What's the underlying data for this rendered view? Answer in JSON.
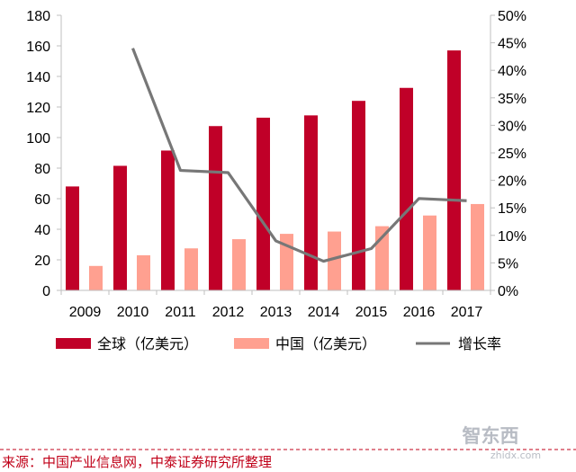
{
  "chart_data": {
    "type": "bar",
    "title": "",
    "categories": [
      "2009",
      "2010",
      "2011",
      "2012",
      "2013",
      "2014",
      "2015",
      "2016",
      "2017"
    ],
    "series": [
      {
        "name": "全球（亿美元）",
        "type": "bar",
        "axis": "left",
        "color": "#c00028",
        "values": [
          68,
          81.5,
          91.5,
          107.5,
          113,
          114.5,
          124,
          132.5,
          157
        ]
      },
      {
        "name": "中国（亿美元）",
        "type": "bar",
        "axis": "left",
        "color": "#ffa090",
        "values": [
          16,
          23,
          27.5,
          33.5,
          37,
          38.5,
          42,
          49,
          56.5
        ]
      },
      {
        "name": "增长率",
        "type": "line",
        "axis": "right",
        "color": "#777777",
        "values": [
          null,
          44,
          21.8,
          21.4,
          9,
          5.3,
          7.6,
          16.7,
          16.3
        ]
      }
    ],
    "y_left": {
      "ylim": [
        0,
        180
      ],
      "ticks": [
        0,
        20,
        40,
        60,
        80,
        100,
        120,
        140,
        160,
        180
      ],
      "tick_labels": [
        "0",
        "20",
        "40",
        "60",
        "80",
        "100",
        "120",
        "140",
        "160",
        "180"
      ]
    },
    "y_right": {
      "ylim": [
        0,
        50
      ],
      "ticks": [
        0,
        5,
        10,
        15,
        20,
        25,
        30,
        35,
        40,
        45,
        50
      ],
      "tick_labels": [
        "0%",
        "5%",
        "10%",
        "15%",
        "20%",
        "25%",
        "30%",
        "35%",
        "40%",
        "45%",
        "50%"
      ]
    },
    "xlabel": "",
    "ylabel": "",
    "grid": false,
    "legend": {
      "position": "bottom",
      "items": [
        "全球（亿美元）",
        "中国（亿美元）",
        "增长率"
      ]
    }
  },
  "source": "来源：中国产业信息网，中泰证券研究所整理",
  "watermark": {
    "logo": "智东西",
    "url": "zhidx.com"
  }
}
